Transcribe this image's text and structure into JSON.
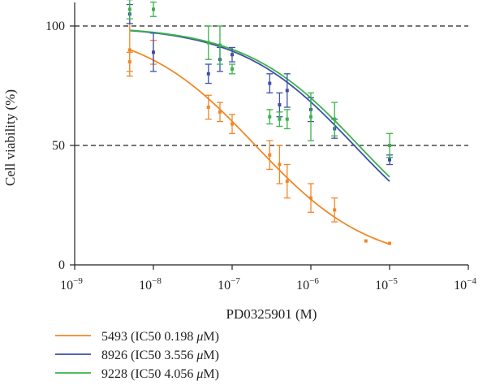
{
  "chart_data": {
    "type": "scatter",
    "xlabel": "PD0325901 (M)",
    "ylabel": "Cell viability (%)",
    "xscale": "log",
    "xlim": [
      1e-09,
      0.0001
    ],
    "ylim": [
      0,
      100
    ],
    "x_ticks": [
      {
        "base": "10",
        "exp": "−9",
        "value": 1e-09
      },
      {
        "base": "10",
        "exp": "−8",
        "value": 1e-08
      },
      {
        "base": "10",
        "exp": "−7",
        "value": 1e-07
      },
      {
        "base": "10",
        "exp": "−6",
        "value": 1e-06
      },
      {
        "base": "10",
        "exp": "−5",
        "value": 1e-05
      },
      {
        "base": "10",
        "exp": "−4",
        "value": 0.0001
      }
    ],
    "y_ticks": [
      {
        "label": "0",
        "value": 0
      },
      {
        "label": "50",
        "value": 50
      },
      {
        "label": "100",
        "value": 100
      }
    ],
    "reference_lines": [
      50,
      100
    ],
    "legend_position": "bottom-left",
    "series": [
      {
        "name": "5493 (IC50 0.198 μM)",
        "legend_prefix": "5493 (IC50 0.198 ",
        "legend_unit": "μ",
        "legend_suffix": "M)",
        "color": "#f0882a",
        "fit": {
          "top": 100,
          "bottom": 0,
          "ic50": 1.98e-07,
          "hill": 0.6
        },
        "points": [
          {
            "x": 5e-09,
            "y": 90,
            "err": 11
          },
          {
            "x": 5e-09,
            "y": 85,
            "err": 4
          },
          {
            "x": 1e-08,
            "y": 89,
            "err": 5
          },
          {
            "x": 5e-08,
            "y": 66,
            "err": 5
          },
          {
            "x": 7e-08,
            "y": 64,
            "err": 4
          },
          {
            "x": 1e-07,
            "y": 59,
            "err": 4
          },
          {
            "x": 3e-07,
            "y": 46,
            "err": 6
          },
          {
            "x": 4e-07,
            "y": 42,
            "err": 8
          },
          {
            "x": 5e-07,
            "y": 35,
            "err": 7
          },
          {
            "x": 1e-06,
            "y": 28,
            "err": 6
          },
          {
            "x": 2e-06,
            "y": 23,
            "err": 5
          },
          {
            "x": 5e-06,
            "y": 10,
            "err": 0
          },
          {
            "x": 1e-05,
            "y": 9,
            "err": 0
          }
        ]
      },
      {
        "name": "8926 (IC50 3.556 μM)",
        "legend_prefix": "8926 (IC50 3.556 ",
        "legend_unit": "μ",
        "legend_suffix": "M)",
        "color": "#3d51a8",
        "fit": {
          "top": 100,
          "bottom": 0,
          "ic50": 3.556e-06,
          "hill": 0.6
        },
        "points": [
          {
            "x": 5e-09,
            "y": 105,
            "err": 4
          },
          {
            "x": 1e-08,
            "y": 89,
            "err": 8
          },
          {
            "x": 5e-08,
            "y": 80,
            "err": 4
          },
          {
            "x": 7e-08,
            "y": 86,
            "err": 5
          },
          {
            "x": 1e-07,
            "y": 88,
            "err": 3
          },
          {
            "x": 3e-07,
            "y": 76,
            "err": 4
          },
          {
            "x": 4e-07,
            "y": 67,
            "err": 5
          },
          {
            "x": 5e-07,
            "y": 73,
            "err": 7
          },
          {
            "x": 1e-06,
            "y": 65,
            "err": 5
          },
          {
            "x": 2e-06,
            "y": 57,
            "err": 4
          },
          {
            "x": 1e-05,
            "y": 44,
            "err": 2
          }
        ]
      },
      {
        "name": "9228 (IC50 4.056 μM)",
        "legend_prefix": "9228 (IC50 4.056 ",
        "legend_unit": "μ",
        "legend_suffix": "M)",
        "color": "#3bb34a",
        "fit": {
          "top": 100,
          "bottom": 0,
          "ic50": 4.056e-06,
          "hill": 0.6
        },
        "points": [
          {
            "x": 5e-09,
            "y": 107,
            "err": 4
          },
          {
            "x": 1e-08,
            "y": 107,
            "err": 3
          },
          {
            "x": 5e-08,
            "y": 93,
            "err": 7
          },
          {
            "x": 7e-08,
            "y": 92,
            "err": 8
          },
          {
            "x": 1e-07,
            "y": 82,
            "err": 2
          },
          {
            "x": 3e-07,
            "y": 62,
            "err": 3
          },
          {
            "x": 4e-07,
            "y": 61,
            "err": 3
          },
          {
            "x": 5e-07,
            "y": 61,
            "err": 4
          },
          {
            "x": 1e-06,
            "y": 62,
            "err": 10
          },
          {
            "x": 2e-06,
            "y": 61,
            "err": 7
          },
          {
            "x": 1e-05,
            "y": 50,
            "err": 5
          }
        ]
      }
    ]
  }
}
